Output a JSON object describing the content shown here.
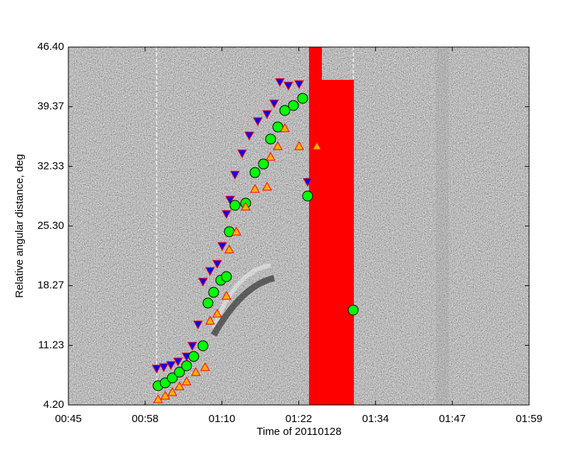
{
  "chart_data": {
    "type": "scatter",
    "xlabel": "Time of 20110128",
    "ylabel": "Relative angular distance, deg",
    "xlim": [
      45,
      119
    ],
    "xticks": [
      {
        "value": 45,
        "label": "00:45"
      },
      {
        "value": 57.33,
        "label": "00:58"
      },
      {
        "value": 69.67,
        "label": "01:10"
      },
      {
        "value": 82,
        "label": "01:22"
      },
      {
        "value": 94.33,
        "label": "01:34"
      },
      {
        "value": 106.67,
        "label": "01:47"
      },
      {
        "value": 119,
        "label": "01:59"
      }
    ],
    "ylim": [
      4.2,
      46.4
    ],
    "yticks": [
      {
        "value": 4.2,
        "label": "4.20"
      },
      11.23,
      18.27,
      {
        "value": 25.3,
        "label": "25.30"
      },
      32.33,
      39.37,
      {
        "value": 46.4,
        "label": "46.40"
      }
    ],
    "vlines": [
      59.18,
      90.75
    ],
    "vline_color": "#ffffff",
    "red_bars": [
      {
        "x0": 83.66,
        "x1": 85.72,
        "top": 46.4
      },
      {
        "x0": 85.72,
        "x1": 90.86,
        "top": 42.53
      }
    ],
    "red_bar_color": "#ff0000",
    "series": [
      {
        "marker": "triangle-down",
        "color": "#0000ff",
        "x": [
          59.18,
          60.33,
          61.47,
          62.61,
          63.99,
          64.9,
          65.82,
          66.62,
          67.76,
          68.91,
          69.71,
          70.39,
          70.96,
          71.76,
          72.91,
          74.05,
          75.42,
          76.91,
          78.05,
          78.97,
          80.34,
          82.06,
          83.43,
          90.64
        ],
        "values": [
          8.49,
          8.66,
          8.91,
          9.33,
          9.92,
          11.18,
          13.7,
          18.74,
          20.0,
          20.84,
          22.95,
          26.73,
          28.41,
          31.35,
          33.87,
          35.98,
          37.66,
          38.5,
          39.76,
          42.28,
          41.86,
          42.03,
          30.51,
          15.38
        ]
      },
      {
        "marker": "circle",
        "color": "#00ff00",
        "x": [
          59.41,
          60.56,
          61.7,
          62.84,
          63.99,
          65.13,
          66.62,
          67.42,
          68.33,
          69.48,
          70.39,
          70.85,
          71.76,
          73.48,
          74.97,
          76.34,
          77.48,
          78.63,
          79.77,
          81.14,
          82.63,
          83.43,
          90.75
        ],
        "values": [
          6.47,
          6.81,
          7.39,
          8.07,
          8.82,
          9.92,
          11.18,
          16.22,
          17.48,
          18.91,
          19.33,
          24.63,
          27.74,
          27.99,
          31.6,
          32.61,
          35.56,
          36.98,
          38.92,
          39.51,
          40.35,
          28.83,
          15.38
        ]
      },
      {
        "marker": "triangle-up",
        "color": "#ffb000",
        "x": [
          59.41,
          60.56,
          61.7,
          62.84,
          63.99,
          65.47,
          66.96,
          67.76,
          68.91,
          70.39,
          70.85,
          71.99,
          73.48,
          74.97,
          76.91,
          77.48,
          78.63,
          79.77,
          82.06,
          84.92
        ],
        "values": [
          4.87,
          5.29,
          5.71,
          6.39,
          6.97,
          8.07,
          8.66,
          14.12,
          14.96,
          17.06,
          22.53,
          24.63,
          27.57,
          29.67,
          29.93,
          33.45,
          34.71,
          36.82,
          34.71,
          34.71
        ]
      }
    ]
  }
}
